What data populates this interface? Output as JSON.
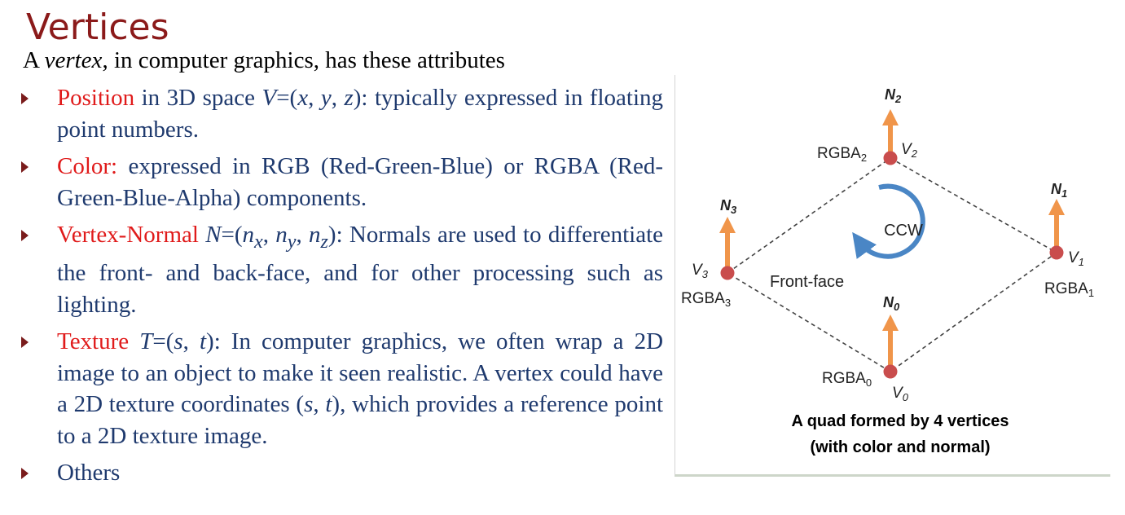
{
  "slide": {
    "title": "Vertices",
    "intro": {
      "pre": "A ",
      "em": "vertex",
      "post": ", in computer graphics, has these attributes"
    },
    "bullets": {
      "position": {
        "term": "Position",
        "t1": " in 3D space ",
        "v": "V",
        "t2": "=(",
        "x": "x",
        "c1": ", ",
        "y": "y",
        "c2": ", ",
        "z": "z",
        "t3": "): typically expressed in floating point numbers."
      },
      "color": {
        "term": "Color:",
        "text": " expressed in RGB (Red-Green-Blue) or RGBA (Red-Green-Blue-Alpha) components."
      },
      "normal": {
        "term": "Vertex-Normal",
        "sp": " ",
        "n": "N",
        "eq": "=(",
        "nx": "n",
        "sx": "x",
        "c1": ", ",
        "ny": "n",
        "sy": "y",
        "c2": ", ",
        "nz": "n",
        "sz": "z",
        "rest": "): Normals are used to differentiate the front- and back-face, and for other processing such as lighting."
      },
      "texture": {
        "term": "Texture",
        "sp": " ",
        "t": "T",
        "eq": "=(",
        "s": "s",
        "c1": ", ",
        "tt": "t",
        "r1": "): In computer graphics, we often wrap a 2D image to an object to make it seen realistic. A vertex could have a 2D texture coordinates (",
        "s2": "s",
        "c2": ", ",
        "t2": "t",
        "r2": "), which provides a reference point to a 2D texture image."
      },
      "others": {
        "text": "Others"
      }
    }
  },
  "diagram": {
    "colors": {
      "vertex": "#c94d4d",
      "normal": "#f0954a",
      "ccw": "#4a86c5",
      "edge": "#444444"
    },
    "labels": {
      "n2": {
        "base": "N",
        "sub": "2"
      },
      "n1": {
        "base": "N",
        "sub": "1"
      },
      "n3": {
        "base": "N",
        "sub": "3"
      },
      "n0": {
        "base": "N",
        "sub": "0"
      },
      "v2": {
        "base": "V",
        "sub": "2"
      },
      "v1": {
        "base": "V",
        "sub": "1"
      },
      "v3": {
        "base": "V",
        "sub": "3"
      },
      "v0": {
        "base": "V",
        "sub": "0"
      },
      "rgba2": {
        "base": "RGBA",
        "sub": "2"
      },
      "rgba1": {
        "base": "RGBA",
        "sub": "1"
      },
      "rgba3": {
        "base": "RGBA",
        "sub": "3"
      },
      "rgba0": {
        "base": "RGBA",
        "sub": "0"
      }
    },
    "ccw": "CCW",
    "front_face": "Front-face",
    "caption": {
      "line1": "A quad formed by 4 vertices",
      "line2": "(with color and normal)"
    }
  }
}
